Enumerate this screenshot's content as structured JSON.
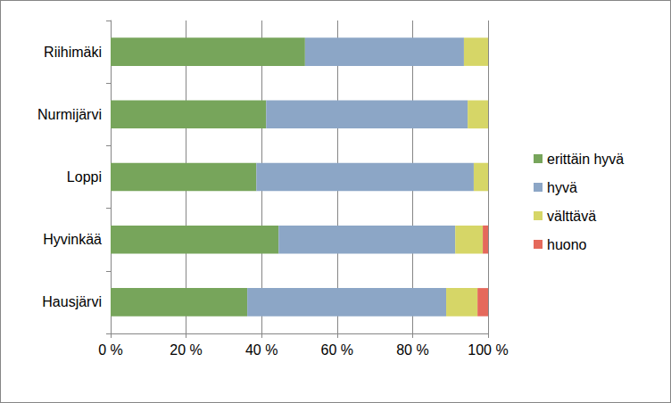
{
  "chart_data": {
    "type": "bar",
    "orientation": "horizontal",
    "stacked": true,
    "grid": true,
    "legend": "right",
    "categories": [
      "Riihimäki",
      "Nurmijärvi",
      "Loppi",
      "Hyvinkää",
      "Hausjärvi"
    ],
    "series": [
      {
        "name": "erittäin hyvä",
        "color": "#77a55b",
        "values": [
          51.5,
          41.2,
          38.6,
          44.5,
          36.2
        ]
      },
      {
        "name": "hyvä",
        "color": "#8ca6c6",
        "values": [
          42.1,
          53.4,
          57.6,
          46.8,
          52.7
        ]
      },
      {
        "name": "välttävä",
        "color": "#d6d667",
        "values": [
          6.4,
          5.4,
          3.8,
          7.3,
          8.3
        ]
      },
      {
        "name": "huono",
        "color": "#e5695b",
        "values": [
          0,
          0,
          0,
          1.4,
          2.8
        ]
      }
    ],
    "xlim": [
      0,
      100
    ],
    "xticks": [
      {
        "value": 0,
        "label": "0 %"
      },
      {
        "value": 20,
        "label": "20 %"
      },
      {
        "value": 40,
        "label": "40 %"
      },
      {
        "value": 60,
        "label": "60 %"
      },
      {
        "value": 80,
        "label": "80 %"
      },
      {
        "value": 100,
        "label": "100 %"
      }
    ]
  }
}
